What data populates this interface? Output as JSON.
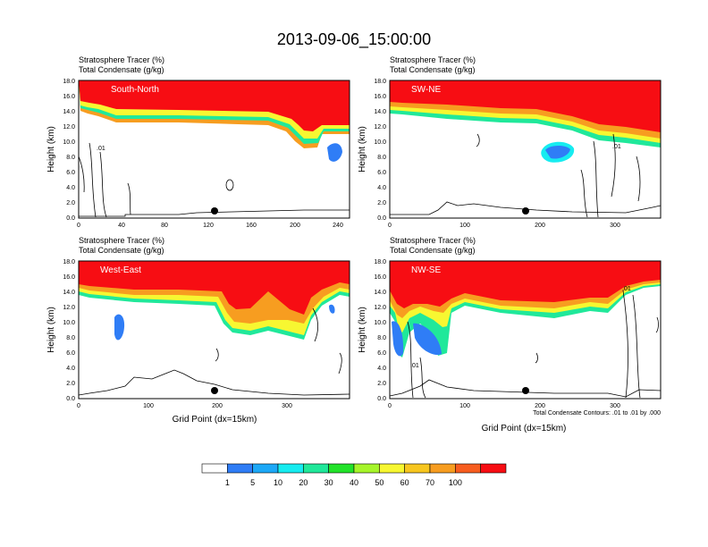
{
  "figure": {
    "title": "2013-09-06_15:00:00",
    "footnote": "Total Condensate Contours: .01 to .01 by .000",
    "xlabel": "Grid Point (dx=15km)"
  },
  "colorbar": {
    "labels": [
      "1",
      "5",
      "10",
      "20",
      "30",
      "40",
      "50",
      "60",
      "70",
      "100"
    ],
    "colors": [
      "#ffffff",
      "#2f7df6",
      "#1ca8f7",
      "#16ecf0",
      "#20e89a",
      "#22e32a",
      "#a6f52a",
      "#f7f731",
      "#f7c61f",
      "#f79d20",
      "#f75d1f",
      "#f70d13"
    ]
  },
  "chart_data": [
    {
      "type": "contour",
      "panel": "South-North",
      "subtitle_line1": "Stratosphere Tracer   (%)",
      "subtitle_line2": "Total Condensate   (g/kg)",
      "ylabel": "Height (km)",
      "xlabel": "",
      "xlim": [
        0,
        250
      ],
      "ylim": [
        0,
        18
      ],
      "xticks": [
        "0",
        "40",
        "80",
        "120",
        "160",
        "200",
        "240"
      ],
      "yticks": [
        "0.0",
        "2.0",
        "4.0",
        "6.0",
        "8.0",
        "10.0",
        "12.0",
        "14.0",
        "16.0",
        "18.0"
      ],
      "contour_label": ".01",
      "tropopause_km": {
        "x": [
          0,
          10,
          20,
          30,
          60,
          120,
          185,
          195,
          205,
          215,
          225,
          235,
          250
        ],
        "y": [
          14.2,
          15,
          14.4,
          13.3,
          13,
          13,
          12.9,
          10.5,
          9.5,
          9.8,
          10.6,
          10.2,
          10.7
        ]
      },
      "terrain_km": {
        "x": [
          0,
          40,
          80,
          120,
          160,
          200,
          250
        ],
        "y": [
          0.3,
          0.2,
          0.2,
          0.4,
          0.6,
          0.5,
          0.6
        ]
      },
      "marker": {
        "x": 125,
        "y": 1.0
      }
    },
    {
      "type": "contour",
      "panel": "SW-NE",
      "subtitle_line1": "Stratosphere Tracer   (%)",
      "subtitle_line2": "Total Condensate   (g/kg)",
      "ylabel": "Height (km)",
      "xlabel": "",
      "xlim": [
        0,
        360
      ],
      "ylim": [
        0,
        18
      ],
      "xticks": [
        "0",
        "100",
        "200",
        "300"
      ],
      "yticks": [
        "0.0",
        "2.0",
        "4.0",
        "6.0",
        "8.0",
        "10.0",
        "12.0",
        "14.0",
        "16.0",
        "18.0"
      ],
      "contour_label": ".01",
      "tropopause_km": {
        "x": [
          0,
          50,
          100,
          150,
          200,
          250,
          300,
          340,
          360
        ],
        "y": [
          14.5,
          14.2,
          13.6,
          13.2,
          12.8,
          12.3,
          11.2,
          10.5,
          10
        ]
      },
      "terrain_km": {
        "x": [
          0,
          50,
          80,
          120,
          200,
          300,
          360
        ],
        "y": [
          0.4,
          0.5,
          1.5,
          1.3,
          0.9,
          0.5,
          1.2
        ]
      },
      "marker": {
        "x": 180,
        "y": 1.0
      }
    },
    {
      "type": "contour",
      "panel": "West-East",
      "subtitle_line1": "Stratosphere Tracer   (%)",
      "subtitle_line2": "Total Condensate   (g/kg)",
      "ylabel": "Height (km)",
      "xlabel": "Grid Point (dx=15km)",
      "xlim": [
        0,
        390
      ],
      "ylim": [
        0,
        18
      ],
      "xticks": [
        "0",
        "100",
        "200",
        "300"
      ],
      "yticks": [
        "0.0",
        "2.0",
        "4.0",
        "6.0",
        "8.0",
        "10.0",
        "12.0",
        "14.0",
        "16.0",
        "18.0"
      ],
      "contour_label": "",
      "tropopause_km": {
        "x": [
          0,
          60,
          120,
          200,
          220,
          260,
          300,
          320,
          350,
          390
        ],
        "y": [
          14.5,
          13.8,
          13.5,
          13,
          9.5,
          9.3,
          8.9,
          11,
          12.5,
          13
        ]
      },
      "terrain_km": {
        "x": [
          0,
          60,
          100,
          140,
          180,
          220,
          300,
          390
        ],
        "y": [
          0.5,
          1.6,
          2.0,
          3.0,
          2.0,
          0.8,
          0.5,
          0.6
        ]
      },
      "marker": {
        "x": 195,
        "y": 1.0
      }
    },
    {
      "type": "contour",
      "panel": "NW-SE",
      "subtitle_line1": "Stratosphere Tracer   (%)",
      "subtitle_line2": "Total Condensate   (g/kg)",
      "ylabel": "Height (km)",
      "xlabel": "Grid Point (dx=15km)",
      "xlim": [
        0,
        360
      ],
      "ylim": [
        0,
        18
      ],
      "xticks": [
        "0",
        "100",
        "200",
        "300"
      ],
      "yticks": [
        "0.0",
        "2.0",
        "4.0",
        "6.0",
        "8.0",
        "10.0",
        "12.0",
        "14.0",
        "16.0",
        "18.0"
      ],
      "contour_label": ".01",
      "tropopause_km": {
        "x": [
          0,
          30,
          70,
          120,
          200,
          280,
          320,
          360
        ],
        "y": [
          14,
          10,
          11.5,
          12.5,
          12,
          11.2,
          12.5,
          14.8
        ]
      },
      "terrain_km": {
        "x": [
          0,
          40,
          100,
          200,
          300,
          330,
          360
        ],
        "y": [
          0.5,
          1.5,
          1.0,
          0.6,
          0.8,
          0.5,
          0.7
        ]
      },
      "marker": {
        "x": 180,
        "y": 1.0
      }
    }
  ]
}
